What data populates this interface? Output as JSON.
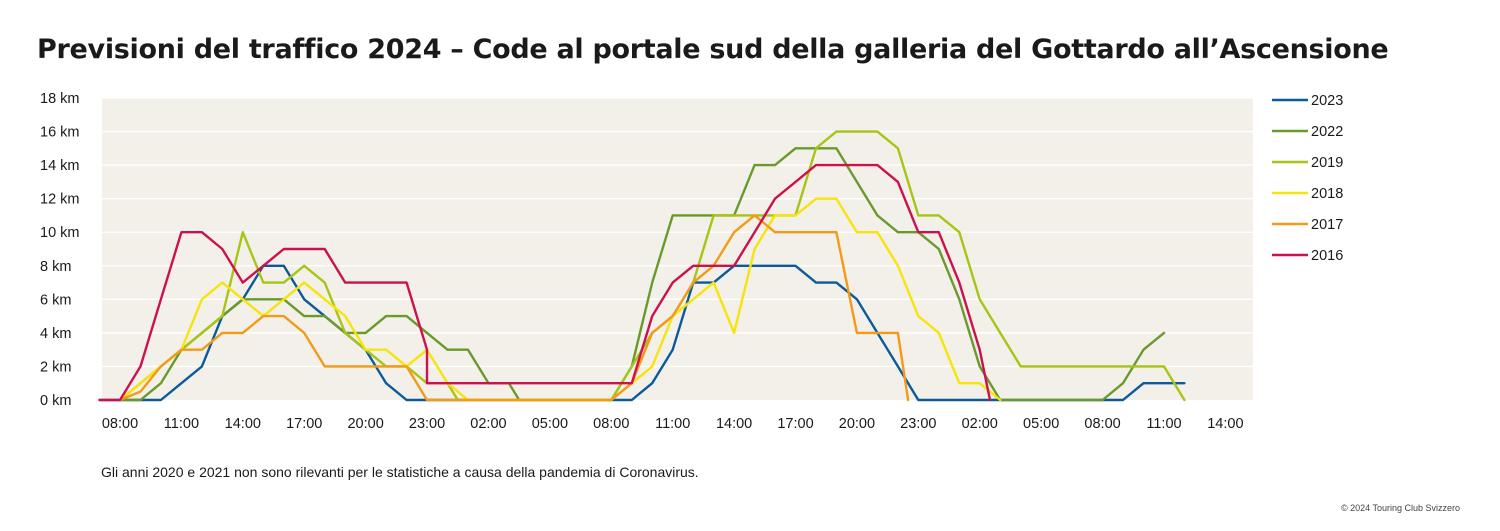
{
  "chart_data": {
    "type": "line",
    "title": "Previsioni del traffico 2024 – Code al portale sud della galleria del Gottardo all’Ascensione",
    "note": "Gli anni 2020 e 2021 non sono rilevanti per le statistiche a causa della pandemia di Coronavirus.",
    "copyright": "© 2024 Touring Club Svizzero",
    "ylim": [
      0,
      18
    ],
    "y_ticks": [
      {
        "value": 0,
        "label": "0 km"
      },
      {
        "value": 2,
        "label": "2 km"
      },
      {
        "value": 4,
        "label": "4 km"
      },
      {
        "value": 6,
        "label": "6 km"
      },
      {
        "value": 8,
        "label": "8 km"
      },
      {
        "value": 10,
        "label": "10 km"
      },
      {
        "value": 12,
        "label": "12 km"
      },
      {
        "value": 14,
        "label": "14 km"
      },
      {
        "value": 16,
        "label": "16 km"
      },
      {
        "value": 18,
        "label": "18 km"
      }
    ],
    "x_tick_labels": [
      "08:00",
      "11:00",
      "14:00",
      "17:00",
      "20:00",
      "23:00",
      "02:00",
      "05:00",
      "08:00",
      "11:00",
      "14:00",
      "17:00",
      "20:00",
      "23:00",
      "02:00",
      "05:00",
      "08:00",
      "11:00",
      "14:00"
    ],
    "x_tick_hours": [
      0,
      3,
      6,
      9,
      12,
      15,
      18,
      21,
      24,
      27,
      30,
      33,
      36,
      39,
      42,
      45,
      48,
      51,
      54
    ],
    "x_unit": "hours since first tick (08:00)",
    "legend_position": "right",
    "grid": "horizontal",
    "background_color": "#f3f0e9",
    "series": [
      {
        "name": "2023",
        "color": "#0b5a9c",
        "points": [
          [
            -1,
            0
          ],
          [
            0,
            0
          ],
          [
            1,
            0
          ],
          [
            2,
            0
          ],
          [
            3,
            1
          ],
          [
            4,
            2
          ],
          [
            5,
            5
          ],
          [
            6,
            6
          ],
          [
            7,
            8
          ],
          [
            8,
            8
          ],
          [
            9,
            6
          ],
          [
            10,
            5
          ],
          [
            11,
            4
          ],
          [
            12,
            3
          ],
          [
            13,
            1
          ],
          [
            14,
            0
          ],
          [
            15,
            0
          ],
          [
            24,
            0
          ],
          [
            25,
            0
          ],
          [
            26,
            1
          ],
          [
            27,
            3
          ],
          [
            28,
            7
          ],
          [
            29,
            7
          ],
          [
            30,
            8
          ],
          [
            31,
            8
          ],
          [
            32,
            8
          ],
          [
            33,
            8
          ],
          [
            34,
            7
          ],
          [
            35,
            7
          ],
          [
            36,
            6
          ],
          [
            37,
            4
          ],
          [
            38,
            2
          ],
          [
            39,
            0
          ],
          [
            48,
            0
          ],
          [
            49,
            0
          ],
          [
            50,
            1
          ],
          [
            51,
            1
          ],
          [
            52,
            1
          ]
        ]
      },
      {
        "name": "2022",
        "color": "#6a9a2b",
        "points": [
          [
            0,
            0
          ],
          [
            1,
            0
          ],
          [
            2,
            1
          ],
          [
            3,
            3
          ],
          [
            4,
            4
          ],
          [
            5,
            5
          ],
          [
            6,
            6
          ],
          [
            7,
            6
          ],
          [
            8,
            6
          ],
          [
            9,
            5
          ],
          [
            10,
            5
          ],
          [
            11,
            4
          ],
          [
            12,
            4
          ],
          [
            13,
            5
          ],
          [
            14,
            5
          ],
          [
            15,
            4
          ],
          [
            16,
            3
          ],
          [
            17,
            3
          ],
          [
            18,
            1
          ],
          [
            19,
            1
          ],
          [
            19.5,
            0
          ],
          [
            24,
            0
          ],
          [
            25,
            2
          ],
          [
            26,
            7
          ],
          [
            27,
            11
          ],
          [
            28,
            11
          ],
          [
            29,
            11
          ],
          [
            30,
            11
          ],
          [
            31,
            14
          ],
          [
            32,
            14
          ],
          [
            33,
            15
          ],
          [
            34,
            15
          ],
          [
            35,
            15
          ],
          [
            36,
            13
          ],
          [
            37,
            11
          ],
          [
            38,
            10
          ],
          [
            39,
            10
          ],
          [
            40,
            9
          ],
          [
            41,
            6
          ],
          [
            42,
            2
          ],
          [
            43,
            0
          ],
          [
            48,
            0
          ],
          [
            49,
            1
          ],
          [
            50,
            3
          ],
          [
            51,
            4
          ]
        ]
      },
      {
        "name": "2019",
        "color": "#a8c414",
        "points": [
          [
            0,
            0
          ],
          [
            1,
            1
          ],
          [
            2,
            2
          ],
          [
            3,
            3
          ],
          [
            4,
            4
          ],
          [
            5,
            5
          ],
          [
            6,
            10
          ],
          [
            7,
            7
          ],
          [
            8,
            7
          ],
          [
            9,
            8
          ],
          [
            10,
            7
          ],
          [
            11,
            4
          ],
          [
            12,
            3
          ],
          [
            13,
            2
          ],
          [
            14,
            2
          ],
          [
            15,
            1
          ],
          [
            16,
            1
          ],
          [
            16.5,
            0
          ],
          [
            24,
            0
          ],
          [
            25,
            2
          ],
          [
            26,
            4
          ],
          [
            27,
            5
          ],
          [
            28,
            7
          ],
          [
            29,
            11
          ],
          [
            30,
            11
          ],
          [
            31,
            11
          ],
          [
            32,
            11
          ],
          [
            33,
            11
          ],
          [
            34,
            15
          ],
          [
            35,
            16
          ],
          [
            36,
            16
          ],
          [
            37,
            16
          ],
          [
            38,
            15
          ],
          [
            39,
            11
          ],
          [
            40,
            11
          ],
          [
            41,
            10
          ],
          [
            42,
            6
          ],
          [
            43,
            4
          ],
          [
            44,
            2
          ],
          [
            45,
            2
          ],
          [
            46,
            2
          ],
          [
            47,
            2
          ],
          [
            48,
            2
          ],
          [
            49,
            2
          ],
          [
            50,
            2
          ],
          [
            51,
            2
          ],
          [
            52,
            0
          ]
        ]
      },
      {
        "name": "2018",
        "color": "#f6e40c",
        "points": [
          [
            0,
            0
          ],
          [
            1,
            1
          ],
          [
            2,
            2
          ],
          [
            3,
            3
          ],
          [
            4,
            6
          ],
          [
            5,
            7
          ],
          [
            6,
            6
          ],
          [
            7,
            5
          ],
          [
            8,
            6
          ],
          [
            9,
            7
          ],
          [
            10,
            6
          ],
          [
            11,
            5
          ],
          [
            12,
            3
          ],
          [
            13,
            3
          ],
          [
            14,
            2
          ],
          [
            15,
            3
          ],
          [
            16,
            1
          ],
          [
            17,
            0
          ],
          [
            24,
            0
          ],
          [
            25,
            1
          ],
          [
            26,
            2
          ],
          [
            27,
            5
          ],
          [
            28,
            6
          ],
          [
            29,
            7
          ],
          [
            30,
            4
          ],
          [
            31,
            9
          ],
          [
            32,
            11
          ],
          [
            33,
            11
          ],
          [
            34,
            12
          ],
          [
            35,
            12
          ],
          [
            36,
            10
          ],
          [
            37,
            10
          ],
          [
            38,
            8
          ],
          [
            39,
            5
          ],
          [
            40,
            4
          ],
          [
            41,
            1
          ],
          [
            42,
            1
          ],
          [
            43,
            0
          ]
        ]
      },
      {
        "name": "2017",
        "color": "#f29a1a",
        "points": [
          [
            0,
            0
          ],
          [
            1,
            0.5
          ],
          [
            2,
            2
          ],
          [
            3,
            3
          ],
          [
            4,
            3
          ],
          [
            5,
            4
          ],
          [
            6,
            4
          ],
          [
            7,
            5
          ],
          [
            8,
            5
          ],
          [
            9,
            4
          ],
          [
            10,
            2
          ],
          [
            11,
            2
          ],
          [
            12,
            2
          ],
          [
            13,
            2
          ],
          [
            14,
            2
          ],
          [
            15,
            0
          ],
          [
            24,
            0
          ],
          [
            25,
            1
          ],
          [
            26,
            4
          ],
          [
            27,
            5
          ],
          [
            28,
            7
          ],
          [
            29,
            8
          ],
          [
            30,
            10
          ],
          [
            31,
            11
          ],
          [
            32,
            10
          ],
          [
            33,
            10
          ],
          [
            34,
            10
          ],
          [
            35,
            10
          ],
          [
            36,
            4
          ],
          [
            37,
            4
          ],
          [
            38,
            4
          ],
          [
            38.5,
            0
          ]
        ]
      },
      {
        "name": "2016",
        "color": "#cc1150",
        "points": [
          [
            -1,
            0
          ],
          [
            0,
            0
          ],
          [
            1,
            2
          ],
          [
            2,
            6
          ],
          [
            3,
            10
          ],
          [
            4,
            10
          ],
          [
            5,
            9
          ],
          [
            6,
            7
          ],
          [
            7,
            8
          ],
          [
            8,
            9
          ],
          [
            9,
            9
          ],
          [
            10,
            9
          ],
          [
            11,
            7
          ],
          [
            12,
            7
          ],
          [
            13,
            7
          ],
          [
            14,
            7
          ],
          [
            15,
            3
          ],
          [
            15,
            1
          ],
          [
            25,
            1
          ],
          [
            26,
            5
          ],
          [
            27,
            7
          ],
          [
            28,
            8
          ],
          [
            29,
            8
          ],
          [
            30,
            8
          ],
          [
            31,
            10
          ],
          [
            32,
            12
          ],
          [
            33,
            13
          ],
          [
            34,
            14
          ],
          [
            35,
            14
          ],
          [
            36,
            14
          ],
          [
            37,
            14
          ],
          [
            38,
            13
          ],
          [
            39,
            10
          ],
          [
            40,
            10
          ],
          [
            41,
            7
          ],
          [
            42,
            3
          ],
          [
            42.5,
            0
          ]
        ]
      }
    ]
  }
}
